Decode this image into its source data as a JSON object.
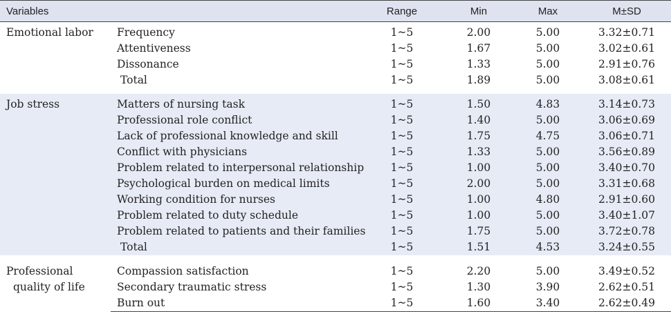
{
  "header": {
    "variables": "Variables",
    "range": "Range",
    "min": "Min",
    "max": "Max",
    "msd": "M±SD"
  },
  "groups": [
    {
      "name": "Emotional labor",
      "rows": [
        {
          "item": "Frequency",
          "range": "1~5",
          "min": "2.00",
          "max": "5.00",
          "msd": "3.32±0.71"
        },
        {
          "item": "Attentiveness",
          "range": "1~5",
          "min": "1.67",
          "max": "5.00",
          "msd": "3.02±0.61"
        },
        {
          "item": "Dissonance",
          "range": "1~5",
          "min": "1.33",
          "max": "5.00",
          "msd": "2.91±0.76"
        },
        {
          "item": "Total",
          "range": "1~5",
          "min": "1.89",
          "max": "5.00",
          "msd": "3.08±0.61"
        }
      ]
    },
    {
      "name": "Job stress",
      "rows": [
        {
          "item": "Matters of nursing task",
          "range": "1~5",
          "min": "1.50",
          "max": "4.83",
          "msd": "3.14±0.73"
        },
        {
          "item": "Professional role conflict",
          "range": "1~5",
          "min": "1.40",
          "max": "5.00",
          "msd": "3.06±0.69"
        },
        {
          "item": "Lack of professional knowledge and skill",
          "range": "1~5",
          "min": "1.75",
          "max": "4.75",
          "msd": "3.06±0.71"
        },
        {
          "item": "Conflict with physicians",
          "range": "1~5",
          "min": "1.33",
          "max": "5.00",
          "msd": "3.56±0.89"
        },
        {
          "item": "Problem related to interpersonal relationship",
          "range": "1~5",
          "min": "1.00",
          "max": "5.00",
          "msd": "3.40±0.70"
        },
        {
          "item": "Psychological burden on medical limits",
          "range": "1~5",
          "min": "2.00",
          "max": "5.00",
          "msd": "3.31±0.68"
        },
        {
          "item": "Working condition for nurses",
          "range": "1~5",
          "min": "1.00",
          "max": "4.80",
          "msd": "2.91±0.60"
        },
        {
          "item": "Problem related to duty schedule",
          "range": "1~5",
          "min": "1.00",
          "max": "5.00",
          "msd": "3.40±1.07"
        },
        {
          "item": "Problem related to patients and their families",
          "range": "1~5",
          "min": "1.75",
          "max": "5.00",
          "msd": "3.72±0.78"
        },
        {
          "item": "Total",
          "range": "1~5",
          "min": "1.51",
          "max": "4.53",
          "msd": "3.24±0.55"
        }
      ]
    },
    {
      "name_line1": "Professional",
      "name_line2": "quality of life",
      "rows": [
        {
          "item": "Compassion satisfaction",
          "range": "1~5",
          "min": "2.20",
          "max": "5.00",
          "msd": "3.49±0.52"
        },
        {
          "item": "Secondary traumatic stress",
          "range": "1~5",
          "min": "1.30",
          "max": "3.90",
          "msd": "2.62±0.51"
        },
        {
          "item": "Burn out",
          "range": "1~5",
          "min": "1.60",
          "max": "3.40",
          "msd": "2.62±0.49"
        }
      ]
    }
  ]
}
